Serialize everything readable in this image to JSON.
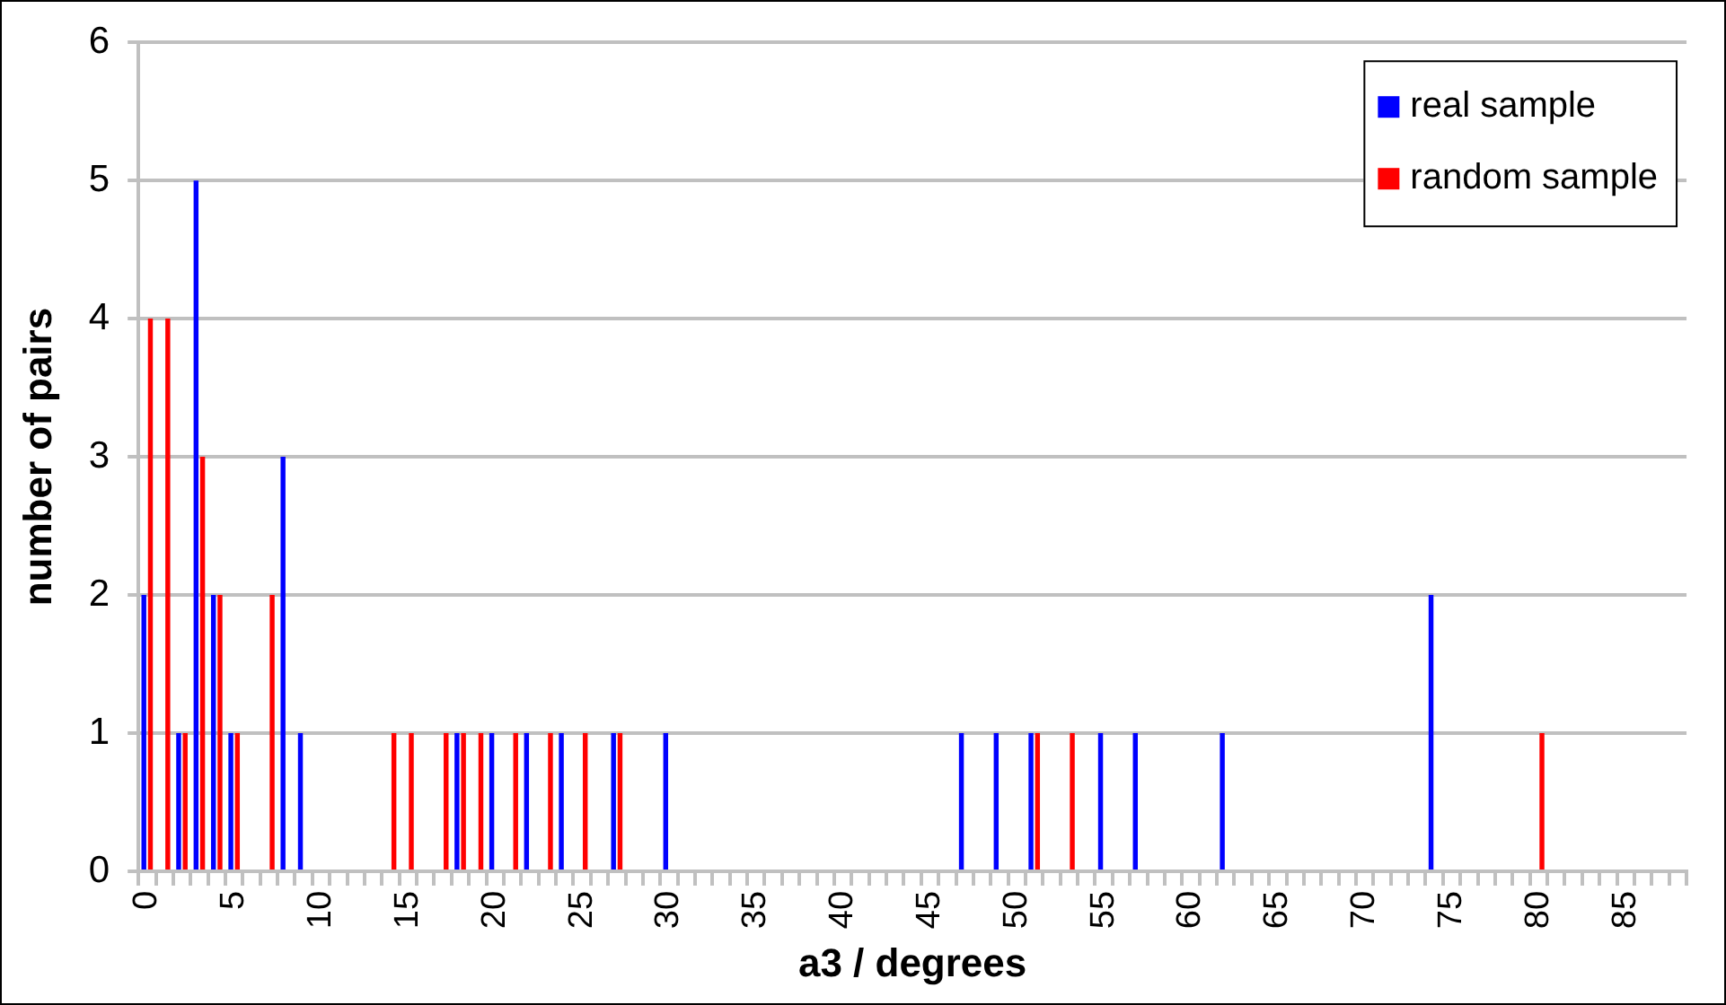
{
  "chart_data": {
    "type": "bar",
    "xlabel": "a3 / degrees",
    "ylabel": "number of pairs",
    "categories": [
      "0",
      null,
      null,
      null,
      null,
      "5",
      null,
      null,
      null,
      null,
      "10",
      null,
      null,
      null,
      null,
      "15",
      null,
      null,
      null,
      null,
      "20",
      null,
      null,
      null,
      null,
      "25",
      null,
      null,
      null,
      null,
      "30",
      null,
      null,
      null,
      null,
      "35",
      null,
      null,
      null,
      null,
      "40",
      null,
      null,
      null,
      null,
      "45",
      null,
      null,
      null,
      null,
      "50",
      null,
      null,
      null,
      null,
      "55",
      null,
      null,
      null,
      null,
      "60",
      null,
      null,
      null,
      null,
      "65",
      null,
      null,
      null,
      null,
      "70",
      null,
      null,
      null,
      null,
      "75",
      null,
      null,
      null,
      null,
      "80",
      null,
      null,
      null,
      null,
      "85",
      null,
      null,
      null
    ],
    "series": [
      {
        "name": "real sample",
        "color": "#0000ff",
        "values": [
          2,
          0,
          1,
          5,
          2,
          1,
          0,
          0,
          3,
          1,
          0,
          0,
          0,
          0,
          0,
          0,
          0,
          0,
          1,
          0,
          1,
          0,
          1,
          0,
          1,
          0,
          0,
          1,
          0,
          0,
          1,
          0,
          0,
          0,
          0,
          0,
          0,
          0,
          0,
          0,
          0,
          0,
          0,
          0,
          0,
          0,
          0,
          1,
          0,
          1,
          0,
          1,
          0,
          0,
          0,
          1,
          0,
          1,
          0,
          0,
          0,
          0,
          1,
          0,
          0,
          0,
          0,
          0,
          0,
          0,
          0,
          0,
          0,
          0,
          2,
          0,
          0,
          0,
          0,
          0,
          0,
          0,
          0,
          0,
          0,
          0,
          0,
          0,
          0
        ]
      },
      {
        "name": "random sample",
        "color": "#ff0000",
        "values": [
          4,
          4,
          1,
          3,
          2,
          1,
          0,
          2,
          0,
          0,
          0,
          0,
          0,
          0,
          1,
          1,
          0,
          1,
          1,
          1,
          0,
          1,
          0,
          1,
          0,
          1,
          0,
          1,
          0,
          0,
          0,
          0,
          0,
          0,
          0,
          0,
          0,
          0,
          0,
          0,
          0,
          0,
          0,
          0,
          0,
          0,
          0,
          0,
          0,
          0,
          0,
          1,
          0,
          1,
          0,
          0,
          0,
          0,
          0,
          0,
          0,
          0,
          0,
          0,
          0,
          0,
          0,
          0,
          0,
          0,
          0,
          0,
          0,
          0,
          0,
          0,
          0,
          0,
          0,
          0,
          1,
          0,
          0,
          0,
          0,
          0,
          0,
          0,
          0
        ]
      }
    ],
    "ylim": [
      0,
      6
    ],
    "yticks": [
      0,
      1,
      2,
      3,
      4,
      5,
      6
    ],
    "grid": "y",
    "legend": "top right"
  }
}
